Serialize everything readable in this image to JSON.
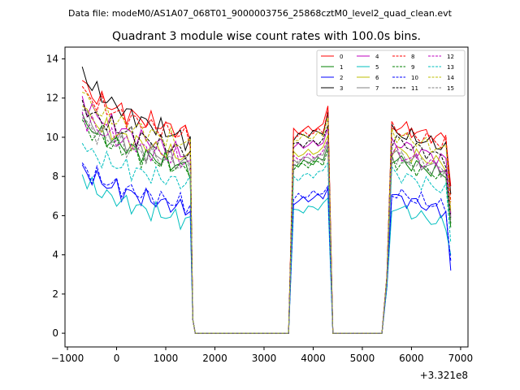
{
  "chart_data": {
    "type": "line",
    "suptitle": "Data file: modeM0/AS1A07_068T01_9000003756_25868cztM0_level2_quad_clean.evt",
    "title": "Quadrant 3 module wise count rates with 100.0s bins.",
    "xlabel": "",
    "ylabel": "",
    "x_offset_label": "+3.321e8",
    "xlim": [
      -1050,
      7150
    ],
    "ylim": [
      -0.7,
      14.6
    ],
    "x_ticks": [
      -1000,
      0,
      1000,
      2000,
      3000,
      4000,
      5000,
      6000,
      7000
    ],
    "x_tick_labels": [
      "−1000",
      "0",
      "1000",
      "2000",
      "3000",
      "4000",
      "5000",
      "6000",
      "7000"
    ],
    "y_ticks": [
      0,
      2,
      4,
      6,
      8,
      10,
      12,
      14
    ],
    "y_tick_labels": [
      "0",
      "2",
      "4",
      "6",
      "8",
      "10",
      "12",
      "14"
    ],
    "legend_position": "upper right",
    "segment_x": [
      [
        -700,
        -600,
        -500,
        -400,
        -300,
        -200,
        -100,
        0,
        100,
        200,
        300,
        400,
        500,
        600,
        700,
        800,
        900,
        1000,
        1100,
        1200,
        1300,
        1400,
        1500,
        1550,
        1600
      ],
      [
        1600,
        1700,
        1800,
        1900,
        2000,
        2100,
        2200,
        2300,
        2400,
        2500,
        2600,
        2700,
        2800,
        2900,
        3000,
        3100,
        3200,
        3300,
        3400,
        3500
      ],
      [
        3500,
        3600,
        3700,
        3800,
        3900,
        4000,
        4100,
        4200,
        4300,
        4400
      ],
      [
        4400,
        4500,
        4600,
        4700,
        4800,
        4900,
        5000,
        5100,
        5200,
        5300,
        5400
      ],
      [
        5400,
        5500,
        5600,
        5700,
        5800,
        5900,
        6000,
        6100,
        6200,
        6300,
        6400,
        6500,
        6600,
        6700,
        6800
      ]
    ],
    "series": [
      {
        "name": "0",
        "color": "#ff0000",
        "dashed": false,
        "levels": [
          12.9,
          10.2,
          10.3,
          10.6,
          11.6,
          9.9
        ]
      },
      {
        "name": "1",
        "color": "#008000",
        "dashed": false,
        "levels": [
          11.2,
          8.4,
          8.6,
          8.9,
          9.6,
          8.1
        ]
      },
      {
        "name": "2",
        "color": "#0000ff",
        "dashed": false,
        "levels": [
          8.6,
          6.3,
          6.7,
          7.1,
          7.4,
          6.2
        ]
      },
      {
        "name": "3",
        "color": "#000000",
        "dashed": false,
        "levels": [
          13.6,
          9.8,
          10.0,
          10.4,
          11.3,
          9.5
        ]
      },
      {
        "name": "4",
        "color": "#bf00bf",
        "dashed": false,
        "levels": [
          12.1,
          9.1,
          9.5,
          9.8,
          10.5,
          8.8
        ]
      },
      {
        "name": "5",
        "color": "#00bfbf",
        "dashed": false,
        "levels": [
          8.1,
          5.7,
          6.2,
          6.6,
          6.9,
          5.5
        ]
      },
      {
        "name": "6",
        "color": "#bfbf00",
        "dashed": false,
        "levels": [
          11.6,
          8.9,
          9.1,
          9.4,
          10.1,
          8.6
        ]
      },
      {
        "name": "7",
        "color": "#808080",
        "dashed": false,
        "levels": [
          11.4,
          8.6,
          8.8,
          9.1,
          9.8,
          8.3
        ]
      },
      {
        "name": "8",
        "color": "#ff0000",
        "dashed": true,
        "levels": [
          12.6,
          10.0,
          10.1,
          10.4,
          11.4,
          9.7
        ]
      },
      {
        "name": "9",
        "color": "#008000",
        "dashed": true,
        "levels": [
          10.9,
          8.3,
          8.5,
          8.8,
          9.4,
          8.0
        ]
      },
      {
        "name": "10",
        "color": "#0000ff",
        "dashed": true,
        "levels": [
          8.7,
          6.5,
          6.9,
          7.3,
          7.5,
          6.4
        ]
      },
      {
        "name": "11",
        "color": "#000000",
        "dashed": true,
        "levels": [
          11.9,
          9.2,
          9.6,
          9.9,
          10.6,
          8.9
        ]
      },
      {
        "name": "12",
        "color": "#bf00bf",
        "dashed": true,
        "levels": [
          11.3,
          8.7,
          8.9,
          9.2,
          9.9,
          8.4
        ]
      },
      {
        "name": "13",
        "color": "#00bfbf",
        "dashed": true,
        "levels": [
          9.7,
          7.6,
          7.9,
          8.3,
          8.7,
          7.3
        ]
      },
      {
        "name": "14",
        "color": "#bfbf00",
        "dashed": true,
        "levels": [
          12.3,
          9.6,
          9.9,
          10.2,
          11.0,
          9.3
        ]
      },
      {
        "name": "15",
        "color": "#808080",
        "dashed": true,
        "levels": [
          11.0,
          8.5,
          8.7,
          9.0,
          9.6,
          8.2
        ]
      }
    ]
  }
}
